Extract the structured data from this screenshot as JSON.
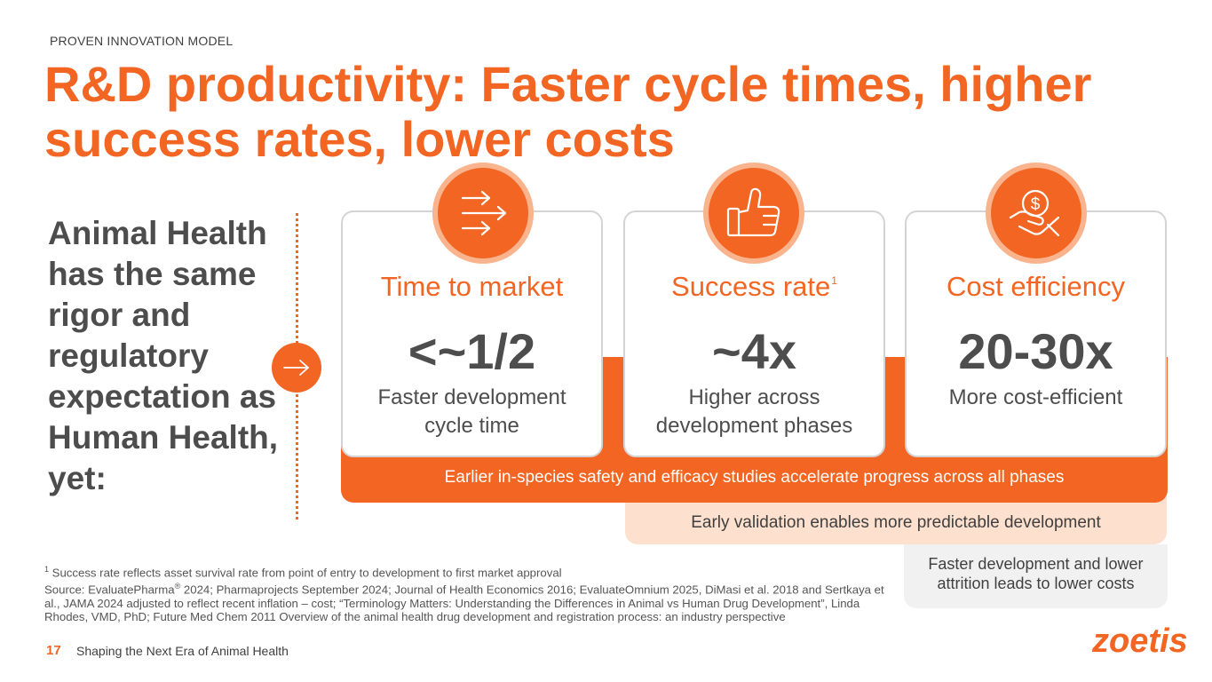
{
  "header": {
    "eyebrow": "PROVEN INNOVATION MODEL",
    "title": "R&D productivity: Faster cycle times, higher success rates, lower costs"
  },
  "lead": {
    "text": "Animal Health has the same rigor and regulatory expectation as Human Health, yet:"
  },
  "cards": [
    {
      "icon": "arrows-right-icon",
      "title": "Time to market",
      "superscript": "",
      "value": "<~1/2",
      "description": "Faster development cycle time"
    },
    {
      "icon": "thumbs-up-icon",
      "title": "Success rate",
      "superscript": "1",
      "value": "~4x",
      "description": "Higher across development phases"
    },
    {
      "icon": "hand-dollar-icon",
      "title": "Cost efficiency",
      "superscript": "",
      "value": "20-30x",
      "description": "More cost-efficient"
    }
  ],
  "bands": {
    "orange": "Earlier in-species safety and efficacy studies accelerate progress across all phases",
    "light": "Early validation enables more predictable development",
    "gray": "Faster development and lower attrition leads to lower costs"
  },
  "footnotes": {
    "note_marker": "1",
    "note": " Success rate reflects asset survival rate from point of entry to development to first market approval",
    "source_prefix": "Source: EvaluatePharma",
    "registered": "®",
    "source_rest": " 2024; Pharmaprojects September 2024; Journal of Health Economics 2016; EvaluateOmnium 2025, DiMasi et al. 2018 and Sertkaya et al., JAMA 2024 adjusted to reflect recent inflation – cost; “Terminology Matters: Understanding the Differences in Animal vs Human Drug Development”, Linda Rhodes, VMD, PhD; Future Med Chem 2011 Overview of the animal health drug development and registration process: an industry perspective"
  },
  "footer": {
    "page_number": "17",
    "label": "Shaping the Next Era of Animal Health",
    "logo_text": "zoetis"
  },
  "colors": {
    "brand_orange": "#f26522",
    "light_peach": "#fde0cd",
    "ring_peach": "#f9b48e",
    "text_gray": "#4d4d4d"
  }
}
